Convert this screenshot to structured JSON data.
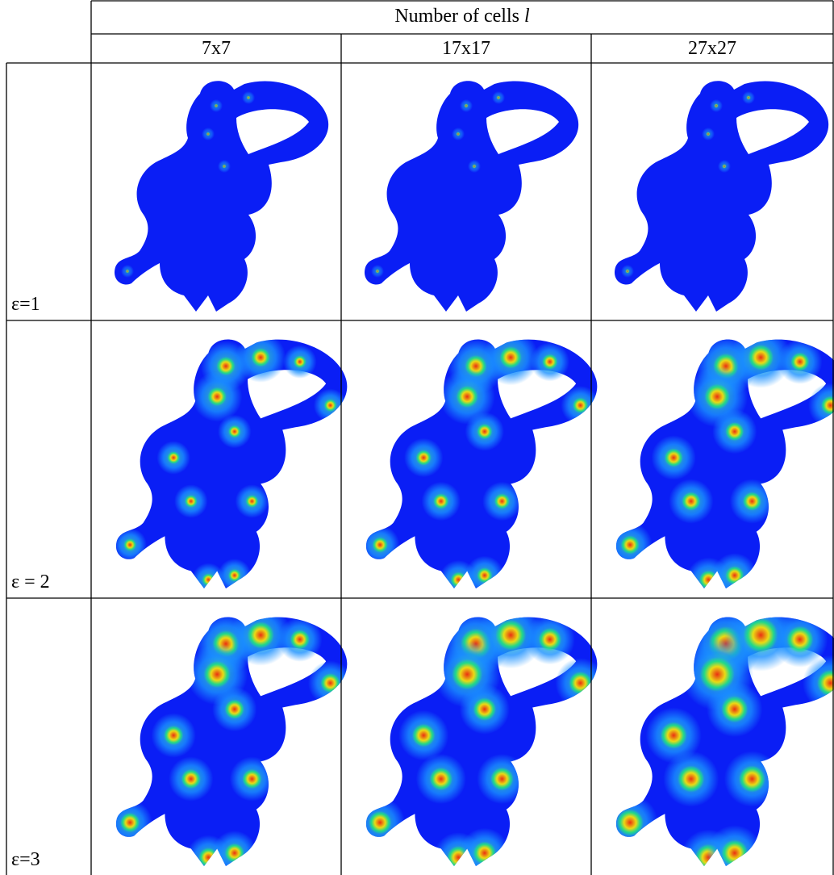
{
  "header": {
    "title": "Number of cells",
    "title_variable": "l",
    "columns": [
      "7x7",
      "17x17",
      "27x27"
    ]
  },
  "rows": [
    {
      "label": "ε=1"
    },
    {
      "label": "ε = 2"
    },
    {
      "label": "ε=3"
    }
  ]
}
